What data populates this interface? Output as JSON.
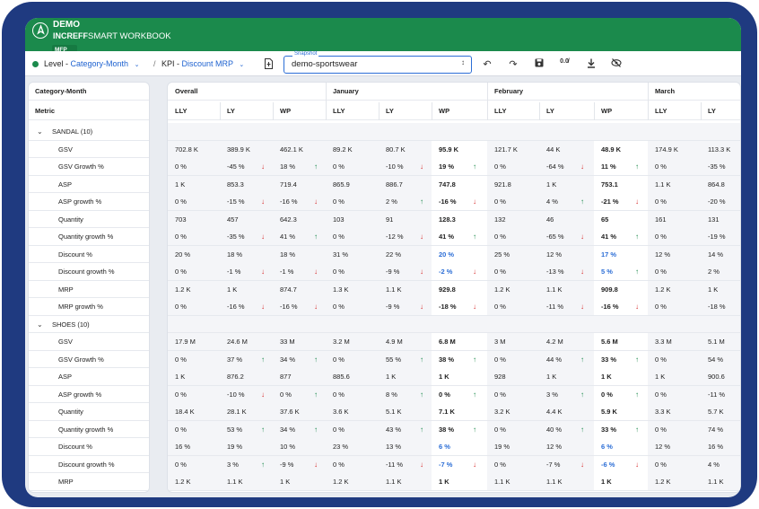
{
  "app": {
    "logo_icon": "compass-icon",
    "brand_top": "DEMO",
    "brand_name": "INCREFF",
    "brand_product": "SMART WORKBOOK",
    "badge": "MFP",
    "accent": "#1b8a4c"
  },
  "toolbar": {
    "level_label": "Level - ",
    "level_value": "Category-Month",
    "kpi_label": "KPI - ",
    "kpi_value": "Discount MRP",
    "separator": "/",
    "snapshot_label": "Snapshot",
    "snapshot_value": "demo-sportswear",
    "icons": [
      "export-icon",
      "undo-icon",
      "redo-icon",
      "save-icon",
      "hide-zero-icon",
      "download-icon",
      "visibility-off-icon"
    ]
  },
  "left": {
    "header1": "Category-Month",
    "header2": "Metric"
  },
  "columns": {
    "groups": [
      "Overall",
      "January",
      "February",
      "March"
    ],
    "subs": [
      "LLY",
      "LY",
      "WP",
      "LLY",
      "LY",
      "WP",
      "LLY",
      "LY",
      "WP",
      "LLY",
      "LY"
    ]
  },
  "groups": [
    {
      "name": "SANDAL (10)",
      "rows": [
        {
          "metric": "GSV",
          "cells": [
            [
              "702.8 K",
              ""
            ],
            [
              "389.9 K",
              ""
            ],
            [
              "462.1 K",
              ""
            ],
            [
              "89.2 K",
              ""
            ],
            [
              "80.7 K",
              ""
            ],
            [
              "95.9 K",
              ""
            ],
            [
              "121.7 K",
              ""
            ],
            [
              "44 K",
              ""
            ],
            [
              "48.9 K",
              ""
            ],
            [
              "174.9 K",
              ""
            ],
            [
              "113.3 K",
              ""
            ]
          ]
        },
        {
          "metric": "GSV Growth %",
          "cells": [
            [
              "0 %",
              ""
            ],
            [
              "-45 %",
              "down"
            ],
            [
              "18 %",
              "up"
            ],
            [
              "0 %",
              ""
            ],
            [
              "-10 %",
              "down"
            ],
            [
              "19 %",
              "up"
            ],
            [
              "0 %",
              ""
            ],
            [
              "-64 %",
              "down"
            ],
            [
              "11 %",
              "up"
            ],
            [
              "0 %",
              ""
            ],
            [
              "-35 %",
              ""
            ]
          ]
        },
        {
          "metric": "ASP",
          "cells": [
            [
              "1 K",
              ""
            ],
            [
              "853.3",
              ""
            ],
            [
              "719.4",
              ""
            ],
            [
              "865.9",
              ""
            ],
            [
              "886.7",
              ""
            ],
            [
              "747.8",
              ""
            ],
            [
              "921.8",
              ""
            ],
            [
              "1 K",
              ""
            ],
            [
              "753.1",
              ""
            ],
            [
              "1.1 K",
              ""
            ],
            [
              "864.8",
              ""
            ]
          ]
        },
        {
          "metric": "ASP growth %",
          "cells": [
            [
              "0 %",
              ""
            ],
            [
              "-15 %",
              "down"
            ],
            [
              "-16 %",
              "down"
            ],
            [
              "0 %",
              ""
            ],
            [
              "2 %",
              "up"
            ],
            [
              "-16 %",
              "down"
            ],
            [
              "0 %",
              ""
            ],
            [
              "4 %",
              "up"
            ],
            [
              "-21 %",
              "down"
            ],
            [
              "0 %",
              ""
            ],
            [
              "-20 %",
              ""
            ]
          ]
        },
        {
          "metric": "Quantity",
          "cells": [
            [
              "703",
              ""
            ],
            [
              "457",
              ""
            ],
            [
              "642.3",
              ""
            ],
            [
              "103",
              ""
            ],
            [
              "91",
              ""
            ],
            [
              "128.3",
              ""
            ],
            [
              "132",
              ""
            ],
            [
              "46",
              ""
            ],
            [
              "65",
              ""
            ],
            [
              "161",
              ""
            ],
            [
              "131",
              ""
            ]
          ]
        },
        {
          "metric": "Quantity growth %",
          "cells": [
            [
              "0 %",
              ""
            ],
            [
              "-35 %",
              "down"
            ],
            [
              "41 %",
              "up"
            ],
            [
              "0 %",
              ""
            ],
            [
              "-12 %",
              "down"
            ],
            [
              "41 %",
              "up"
            ],
            [
              "0 %",
              ""
            ],
            [
              "-65 %",
              "down"
            ],
            [
              "41 %",
              "up"
            ],
            [
              "0 %",
              ""
            ],
            [
              "-19 %",
              ""
            ]
          ]
        },
        {
          "metric": "Discount %",
          "wpblue": true,
          "cells": [
            [
              "20 %",
              ""
            ],
            [
              "18 %",
              ""
            ],
            [
              "18 %",
              ""
            ],
            [
              "31 %",
              ""
            ],
            [
              "22 %",
              ""
            ],
            [
              "20 %",
              ""
            ],
            [
              "25 %",
              ""
            ],
            [
              "12 %",
              ""
            ],
            [
              "17 %",
              ""
            ],
            [
              "12 %",
              ""
            ],
            [
              "14 %",
              ""
            ]
          ]
        },
        {
          "metric": "Discount growth %",
          "wpblue": true,
          "cells": [
            [
              "0 %",
              ""
            ],
            [
              "-1 %",
              "down"
            ],
            [
              "-1 %",
              "down"
            ],
            [
              "0 %",
              ""
            ],
            [
              "-9 %",
              "down"
            ],
            [
              "-2 %",
              "down"
            ],
            [
              "0 %",
              ""
            ],
            [
              "-13 %",
              "down"
            ],
            [
              "5 %",
              "up"
            ],
            [
              "0 %",
              ""
            ],
            [
              "2 %",
              ""
            ]
          ]
        },
        {
          "metric": "MRP",
          "cells": [
            [
              "1.2 K",
              ""
            ],
            [
              "1 K",
              ""
            ],
            [
              "874.7",
              ""
            ],
            [
              "1.3 K",
              ""
            ],
            [
              "1.1 K",
              ""
            ],
            [
              "929.8",
              ""
            ],
            [
              "1.2 K",
              ""
            ],
            [
              "1.1 K",
              ""
            ],
            [
              "909.8",
              ""
            ],
            [
              "1.2 K",
              ""
            ],
            [
              "1 K",
              ""
            ]
          ]
        },
        {
          "metric": "MRP growth %",
          "cells": [
            [
              "0 %",
              ""
            ],
            [
              "-16 %",
              "down"
            ],
            [
              "-16 %",
              "down"
            ],
            [
              "0 %",
              ""
            ],
            [
              "-9 %",
              "down"
            ],
            [
              "-18 %",
              "down"
            ],
            [
              "0 %",
              ""
            ],
            [
              "-11 %",
              "down"
            ],
            [
              "-16 %",
              "down"
            ],
            [
              "0 %",
              ""
            ],
            [
              "-18 %",
              ""
            ]
          ]
        }
      ]
    },
    {
      "name": "SHOES (10)",
      "rows": [
        {
          "metric": "GSV",
          "cells": [
            [
              "17.9 M",
              ""
            ],
            [
              "24.6 M",
              ""
            ],
            [
              "33 M",
              ""
            ],
            [
              "3.2 M",
              ""
            ],
            [
              "4.9 M",
              ""
            ],
            [
              "6.8 M",
              ""
            ],
            [
              "3 M",
              ""
            ],
            [
              "4.2 M",
              ""
            ],
            [
              "5.6 M",
              ""
            ],
            [
              "3.3 M",
              ""
            ],
            [
              "5.1 M",
              ""
            ]
          ]
        },
        {
          "metric": "GSV Growth %",
          "cells": [
            [
              "0 %",
              ""
            ],
            [
              "37 %",
              "up"
            ],
            [
              "34 %",
              "up"
            ],
            [
              "0 %",
              ""
            ],
            [
              "55 %",
              "up"
            ],
            [
              "38 %",
              "up"
            ],
            [
              "0 %",
              ""
            ],
            [
              "44 %",
              "up"
            ],
            [
              "33 %",
              "up"
            ],
            [
              "0 %",
              ""
            ],
            [
              "54 %",
              ""
            ]
          ]
        },
        {
          "metric": "ASP",
          "cells": [
            [
              "1 K",
              ""
            ],
            [
              "876.2",
              ""
            ],
            [
              "877",
              ""
            ],
            [
              "885.6",
              ""
            ],
            [
              "1 K",
              ""
            ],
            [
              "1 K",
              ""
            ],
            [
              "928",
              ""
            ],
            [
              "1 K",
              ""
            ],
            [
              "1 K",
              ""
            ],
            [
              "1 K",
              ""
            ],
            [
              "900.6",
              ""
            ]
          ]
        },
        {
          "metric": "ASP growth %",
          "cells": [
            [
              "0 %",
              ""
            ],
            [
              "-10 %",
              "down"
            ],
            [
              "0 %",
              "up"
            ],
            [
              "0 %",
              ""
            ],
            [
              "8 %",
              "up"
            ],
            [
              "0 %",
              "up"
            ],
            [
              "0 %",
              ""
            ],
            [
              "3 %",
              "up"
            ],
            [
              "0 %",
              "up"
            ],
            [
              "0 %",
              ""
            ],
            [
              "-11 %",
              ""
            ]
          ]
        },
        {
          "metric": "Quantity",
          "cells": [
            [
              "18.4 K",
              ""
            ],
            [
              "28.1 K",
              ""
            ],
            [
              "37.6 K",
              ""
            ],
            [
              "3.6 K",
              ""
            ],
            [
              "5.1 K",
              ""
            ],
            [
              "7.1 K",
              ""
            ],
            [
              "3.2 K",
              ""
            ],
            [
              "4.4 K",
              ""
            ],
            [
              "5.9 K",
              ""
            ],
            [
              "3.3 K",
              ""
            ],
            [
              "5.7 K",
              ""
            ]
          ]
        },
        {
          "metric": "Quantity growth %",
          "cells": [
            [
              "0 %",
              ""
            ],
            [
              "53 %",
              "up"
            ],
            [
              "34 %",
              "up"
            ],
            [
              "0 %",
              ""
            ],
            [
              "43 %",
              "up"
            ],
            [
              "38 %",
              "up"
            ],
            [
              "0 %",
              ""
            ],
            [
              "40 %",
              "up"
            ],
            [
              "33 %",
              "up"
            ],
            [
              "0 %",
              ""
            ],
            [
              "74 %",
              ""
            ]
          ]
        },
        {
          "metric": "Discount %",
          "wpblue": true,
          "cells": [
            [
              "16 %",
              ""
            ],
            [
              "19 %",
              ""
            ],
            [
              "10 %",
              ""
            ],
            [
              "23 %",
              ""
            ],
            [
              "13 %",
              ""
            ],
            [
              "6 %",
              ""
            ],
            [
              "19 %",
              ""
            ],
            [
              "12 %",
              ""
            ],
            [
              "6 %",
              ""
            ],
            [
              "12 %",
              ""
            ],
            [
              "16 %",
              ""
            ]
          ]
        },
        {
          "metric": "Discount growth %",
          "wpblue": true,
          "cells": [
            [
              "0 %",
              ""
            ],
            [
              "3 %",
              "up"
            ],
            [
              "-9 %",
              "down"
            ],
            [
              "0 %",
              ""
            ],
            [
              "-11 %",
              "down"
            ],
            [
              "-7 %",
              "down"
            ],
            [
              "0 %",
              ""
            ],
            [
              "-7 %",
              "down"
            ],
            [
              "-6 %",
              "down"
            ],
            [
              "0 %",
              ""
            ],
            [
              "4 %",
              ""
            ]
          ]
        },
        {
          "metric": "MRP",
          "cells": [
            [
              "1.2 K",
              ""
            ],
            [
              "1.1 K",
              ""
            ],
            [
              "1 K",
              ""
            ],
            [
              "1.2 K",
              ""
            ],
            [
              "1.1 K",
              ""
            ],
            [
              "1 K",
              ""
            ],
            [
              "1.1 K",
              ""
            ],
            [
              "1.1 K",
              ""
            ],
            [
              "1 K",
              ""
            ],
            [
              "1.2 K",
              ""
            ],
            [
              "1.1 K",
              ""
            ]
          ]
        }
      ]
    }
  ]
}
